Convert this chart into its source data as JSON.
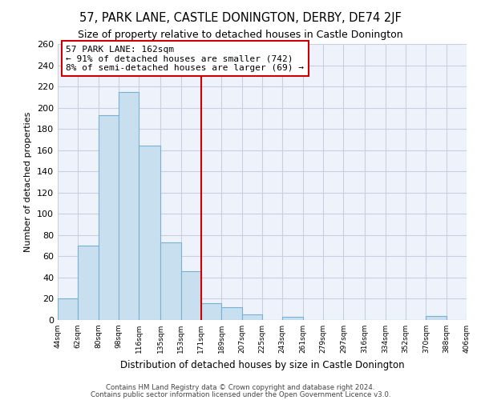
{
  "title": "57, PARK LANE, CASTLE DONINGTON, DERBY, DE74 2JF",
  "subtitle": "Size of property relative to detached houses in Castle Donington",
  "xlabel": "Distribution of detached houses by size in Castle Donington",
  "ylabel": "Number of detached properties",
  "bar_color": "#c8dff0",
  "bar_edge_color": "#7ab0d0",
  "bins": [
    44,
    62,
    80,
    98,
    116,
    135,
    153,
    171,
    189,
    207,
    225,
    243,
    261,
    279,
    297,
    316,
    334,
    352,
    370,
    388,
    406
  ],
  "counts": [
    20,
    70,
    193,
    215,
    164,
    73,
    46,
    16,
    12,
    5,
    0,
    3,
    0,
    0,
    0,
    0,
    0,
    0,
    4,
    0
  ],
  "tick_labels": [
    "44sqm",
    "62sqm",
    "80sqm",
    "98sqm",
    "116sqm",
    "135sqm",
    "153sqm",
    "171sqm",
    "189sqm",
    "207sqm",
    "225sqm",
    "243sqm",
    "261sqm",
    "279sqm",
    "297sqm",
    "316sqm",
    "334sqm",
    "352sqm",
    "370sqm",
    "388sqm",
    "406sqm"
  ],
  "vline_x": 171,
  "vline_color": "#cc0000",
  "annotation_title": "57 PARK LANE: 162sqm",
  "annotation_line1": "← 91% of detached houses are smaller (742)",
  "annotation_line2": "8% of semi-detached houses are larger (69) →",
  "annotation_box_color": "#ffffff",
  "annotation_box_edge": "#cc0000",
  "ylim": [
    0,
    260
  ],
  "yticks": [
    0,
    20,
    40,
    60,
    80,
    100,
    120,
    140,
    160,
    180,
    200,
    220,
    240,
    260
  ],
  "background_color": "#eef2fb",
  "grid_color": "#c8cfe0",
  "footer1": "Contains HM Land Registry data © Crown copyright and database right 2024.",
  "footer2": "Contains public sector information licensed under the Open Government Licence v3.0."
}
